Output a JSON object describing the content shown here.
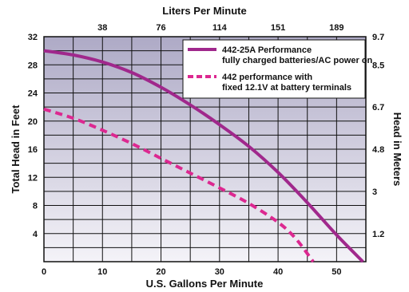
{
  "chart_data": {
    "type": "line",
    "top_axis_label": "Liters Per Minute",
    "xlabel": "U.S. Gallons Per Minute",
    "ylabel": "Total Head in Feet",
    "right_axis_label": "Head in Meters",
    "xlim": [
      0,
      55
    ],
    "ylim": [
      0,
      32
    ],
    "x_ticks": [
      {
        "label": "0",
        "value": 0
      },
      {
        "label": "10",
        "value": 10
      },
      {
        "label": "20",
        "value": 20
      },
      {
        "label": "30",
        "value": 30
      },
      {
        "label": "40",
        "value": 40
      },
      {
        "label": "50",
        "value": 50
      }
    ],
    "y_ticks": [
      {
        "label": "4",
        "value": 4
      },
      {
        "label": "8",
        "value": 8
      },
      {
        "label": "12",
        "value": 12
      },
      {
        "label": "16",
        "value": 16
      },
      {
        "label": "20",
        "value": 20
      },
      {
        "label": "24",
        "value": 24
      },
      {
        "label": "28",
        "value": 28
      },
      {
        "label": "32",
        "value": 32
      }
    ],
    "top_ticks": [
      {
        "label": "38",
        "value": 10
      },
      {
        "label": "76",
        "value": 20
      },
      {
        "label": "114",
        "value": 30
      },
      {
        "label": "151",
        "value": 40
      },
      {
        "label": "189",
        "value": 50
      }
    ],
    "right_ticks": [
      {
        "label": "1.2",
        "value": 4
      },
      {
        "label": "3",
        "value": 10
      },
      {
        "label": "4.8",
        "value": 16
      },
      {
        "label": "6.7",
        "value": 22
      },
      {
        "label": "8.5",
        "value": 28
      },
      {
        "label": "9.7",
        "value": 32
      }
    ],
    "grid": true,
    "legend_position": "top-right",
    "series": [
      {
        "name": "442-25A Performance fully charged batteries/AC power on",
        "color": "#a0288c",
        "style": "solid",
        "points": [
          [
            0,
            30
          ],
          [
            5,
            29.4
          ],
          [
            10,
            28.4
          ],
          [
            15,
            26.9
          ],
          [
            20,
            24.8
          ],
          [
            25,
            22.3
          ],
          [
            30,
            19.5
          ],
          [
            35,
            16.4
          ],
          [
            40,
            12.7
          ],
          [
            45,
            8.4
          ],
          [
            50,
            3.8
          ],
          [
            54.5,
            0
          ]
        ]
      },
      {
        "name": "442 performance with fixed 12.1V at battery terminals",
        "color": "#dc2890",
        "style": "dashed",
        "points": [
          [
            0,
            21.7
          ],
          [
            5,
            20.4
          ],
          [
            10,
            18.7
          ],
          [
            15,
            16.8
          ],
          [
            20,
            14.7
          ],
          [
            25,
            12.6
          ],
          [
            30,
            10.5
          ],
          [
            35,
            8.3
          ],
          [
            40,
            5.6
          ],
          [
            43,
            3.3
          ],
          [
            46,
            0
          ]
        ]
      }
    ]
  }
}
